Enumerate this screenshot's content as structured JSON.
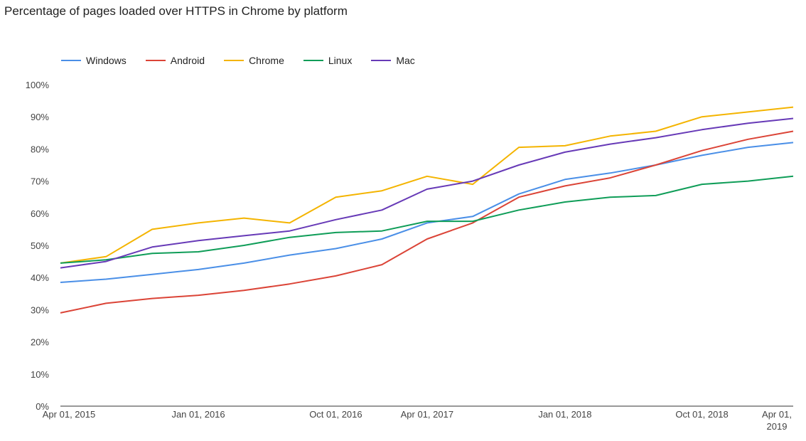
{
  "chart_data": {
    "type": "line",
    "title": "Percentage of pages loaded over HTTPS in Chrome by platform",
    "xlabel": "",
    "ylabel": "",
    "ylim": [
      0,
      100
    ],
    "y_ticks": [
      "0%",
      "10%",
      "20%",
      "30%",
      "40%",
      "50%",
      "60%",
      "70%",
      "80%",
      "90%",
      "100%"
    ],
    "x_ticks": [
      {
        "date": "2015-04-01",
        "label": "Apr 01, 2015"
      },
      {
        "date": "2016-01-01",
        "label": "Jan 01, 2016"
      },
      {
        "date": "2016-10-01",
        "label": "Oct 01, 2016"
      },
      {
        "date": "2017-04-01",
        "label": "Apr 01, 2017"
      },
      {
        "date": "2018-01-01",
        "label": "Jan 01, 2018"
      },
      {
        "date": "2018-10-01",
        "label": "Oct 01, 2018"
      },
      {
        "date": "2019-04-01",
        "label": "Apr 01, 2019"
      }
    ],
    "x_range": [
      "2015-04-01",
      "2019-04-01"
    ],
    "legend_position": "top-left",
    "grid": false,
    "x": [
      "2015-04-01",
      "2015-07-01",
      "2015-10-01",
      "2016-01-01",
      "2016-04-01",
      "2016-07-01",
      "2016-10-01",
      "2017-01-01",
      "2017-04-01",
      "2017-07-01",
      "2017-10-01",
      "2018-01-01",
      "2018-04-01",
      "2018-07-01",
      "2018-10-01",
      "2019-01-01",
      "2019-04-01"
    ],
    "series": [
      {
        "name": "Windows",
        "color": "#4a8fe7",
        "values": [
          38.5,
          39.5,
          41,
          42.5,
          44.5,
          47,
          49,
          52,
          57,
          59,
          66,
          70.5,
          72.5,
          75,
          78,
          80.5,
          82
        ]
      },
      {
        "name": "Android",
        "color": "#db4437",
        "values": [
          29,
          32,
          33.5,
          34.5,
          36,
          38,
          40.5,
          44,
          52,
          57,
          65,
          68.5,
          71,
          75,
          79.5,
          83,
          85.5
        ]
      },
      {
        "name": "Chrome",
        "color": "#f4b400",
        "values": [
          44.5,
          46.5,
          55,
          57,
          58.5,
          57,
          65,
          67,
          71.5,
          69,
          80.5,
          81,
          84,
          85.5,
          90,
          91.5,
          93
        ]
      },
      {
        "name": "Linux",
        "color": "#0f9d58",
        "values": [
          44.5,
          45.5,
          47.5,
          48,
          50,
          52.5,
          54,
          54.5,
          57.5,
          57.5,
          61,
          63.5,
          65,
          65.5,
          69,
          70,
          71.5
        ]
      },
      {
        "name": "Mac",
        "color": "#673ab7",
        "values": [
          43,
          45,
          49.5,
          51.5,
          53,
          54.5,
          58,
          61,
          67.5,
          70,
          75,
          79,
          81.5,
          83.5,
          86,
          88,
          89.5
        ]
      }
    ]
  }
}
